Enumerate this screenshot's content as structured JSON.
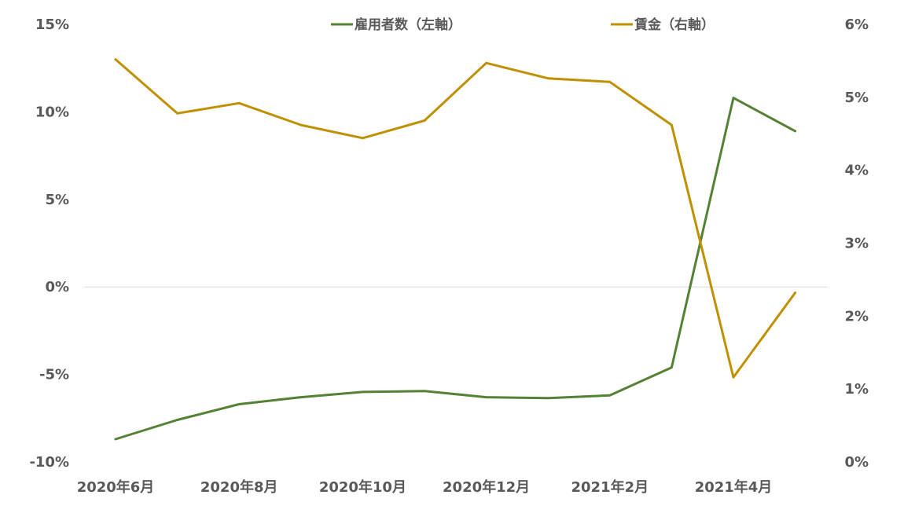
{
  "chart_data": {
    "type": "line",
    "title": "",
    "xlabel": "",
    "ylabel": "",
    "x": [
      "2020年6月",
      "2020年7月",
      "2020年8月",
      "2020年9月",
      "2020年10月",
      "2020年11月",
      "2020年12月",
      "2021年1月",
      "2021年2月",
      "2021年3月",
      "2021年4月",
      "2021年5月"
    ],
    "x_tick_labels": [
      "2020年6月",
      "2020年8月",
      "2020年10月",
      "2020年12月",
      "2021年2月",
      "2021年4月"
    ],
    "y_left": {
      "ylim": [
        -10,
        15
      ],
      "ticks": [
        15,
        10,
        5,
        0,
        -5,
        -10
      ],
      "tick_labels": [
        "15%",
        "10%",
        "5%",
        "0%",
        "-5%",
        "-10%"
      ]
    },
    "y_right": {
      "ylim": [
        0,
        6
      ],
      "ticks": [
        6,
        5,
        4,
        3,
        2,
        1,
        0
      ],
      "tick_labels": [
        "6%",
        "5%",
        "4%",
        "3%",
        "2%",
        "1%",
        "0%"
      ]
    },
    "series": [
      {
        "name": "雇用者数（左軸）",
        "axis": "left",
        "color": "#548235",
        "values": [
          -8.7,
          -7.6,
          -6.7,
          -6.3,
          -6.0,
          -5.95,
          -6.3,
          -6.35,
          -6.2,
          -4.6,
          10.8,
          8.9
        ]
      },
      {
        "name": "賃金（右軸）",
        "axis": "right",
        "color": "#BF9000",
        "values": [
          5.52,
          4.78,
          4.92,
          4.62,
          4.44,
          4.68,
          5.47,
          5.26,
          5.21,
          4.62,
          1.16,
          2.32
        ]
      }
    ],
    "zero_line": true,
    "grid": false,
    "legend_position": "top-center"
  }
}
